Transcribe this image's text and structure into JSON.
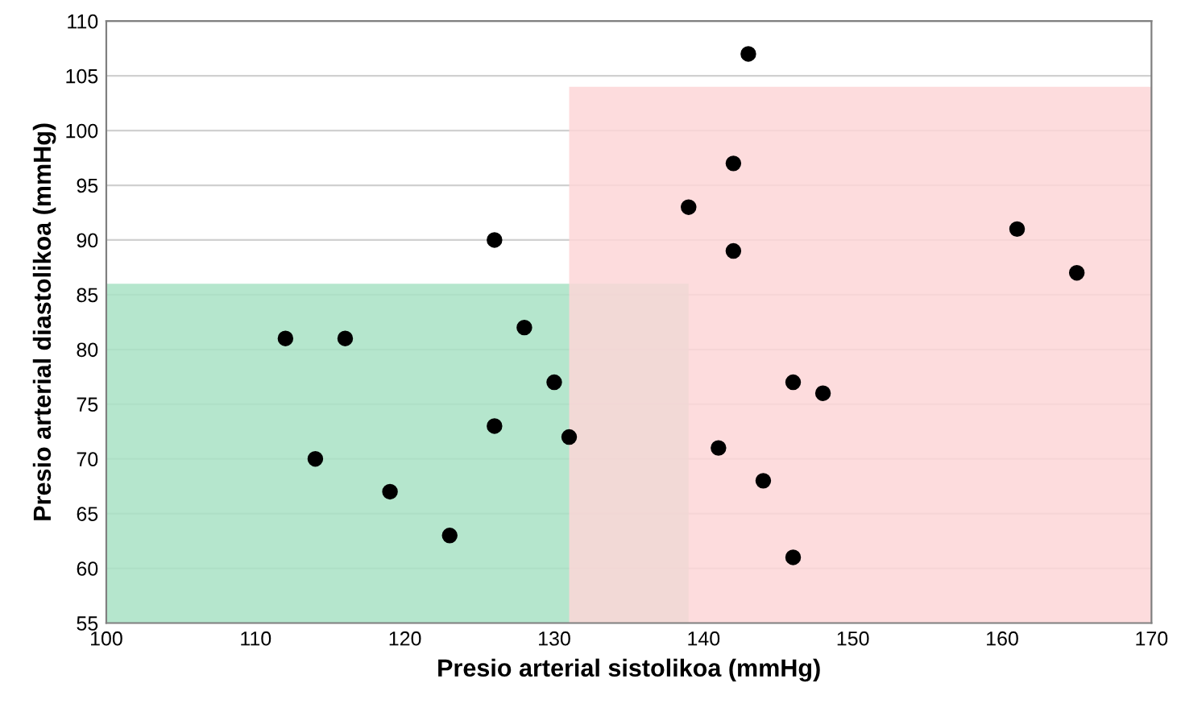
{
  "chart_data": {
    "type": "scatter",
    "xlabel": "Presio arterial sistolikoa (mmHg)",
    "ylabel": "Presio arterial diastolikoa (mmHg)",
    "series": [
      {
        "type": "area",
        "color": "#a8e2c4",
        "x": [
          100,
          139
        ],
        "values": [
          86,
          86
        ]
      },
      {
        "type": "area",
        "color": "#fdd6d7",
        "x": [
          131,
          170
        ],
        "values": [
          104,
          104
        ]
      },
      {
        "color": "#000000",
        "marker": "circle",
        "x": [
          112,
          116,
          114,
          119,
          123,
          126,
          128,
          130,
          131,
          126,
          139,
          142,
          143,
          142,
          146,
          148,
          141,
          144,
          146,
          161,
          165
        ],
        "values": [
          81,
          81,
          70,
          67,
          63,
          73,
          82,
          77,
          72,
          90,
          93,
          97,
          107,
          89,
          77,
          76,
          71,
          68,
          61,
          91,
          87
        ]
      }
    ],
    "xlim": [
      100,
      170
    ],
    "xticks": [
      100,
      110,
      120,
      130,
      140,
      150,
      160,
      170
    ],
    "ylim": [
      55,
      110
    ],
    "yticks": [
      55,
      60,
      65,
      70,
      75,
      80,
      85,
      90,
      95,
      100,
      105,
      110
    ],
    "grid": "y"
  }
}
